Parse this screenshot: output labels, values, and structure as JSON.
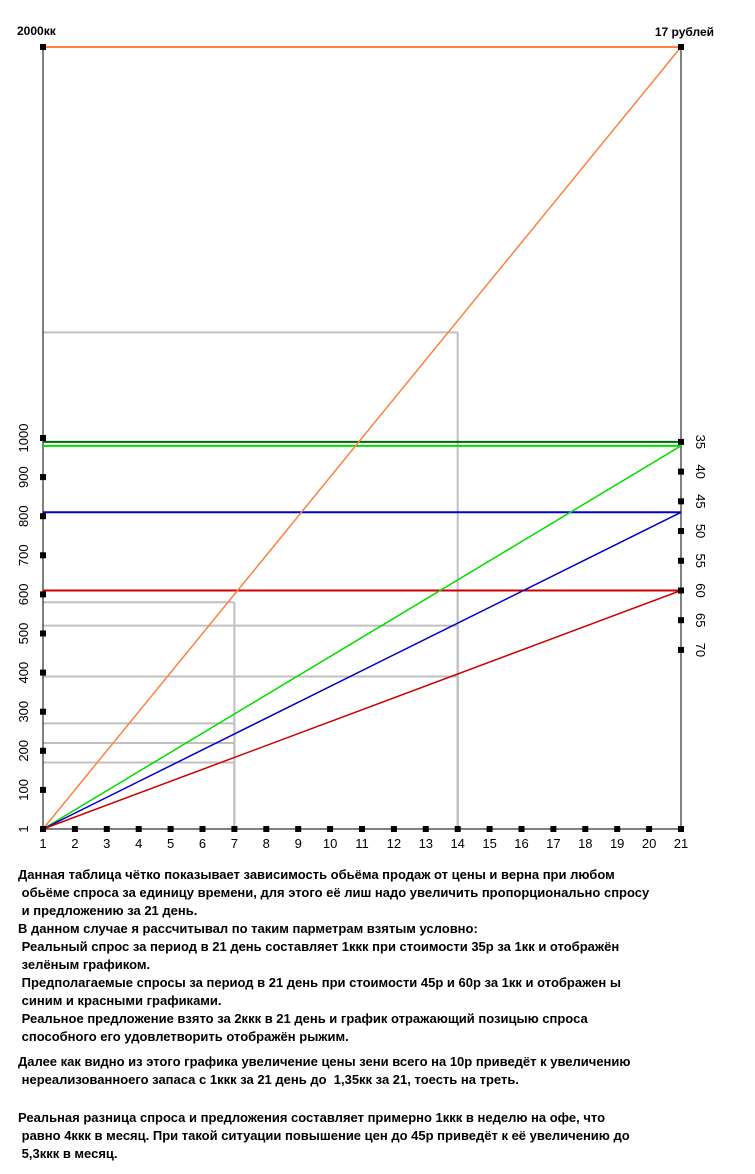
{
  "chart_data": {
    "type": "line",
    "grid": false,
    "legend": "none",
    "corner_left_label": "2000кк",
    "corner_right_label": "17 рублей",
    "x_ticks": [
      "1",
      "2",
      "3",
      "4",
      "5",
      "6",
      "7",
      "8",
      "9",
      "10",
      "11",
      "12",
      "13",
      "14",
      "15",
      "16",
      "17",
      "18",
      "19",
      "20",
      "21"
    ],
    "y_ticks": [
      "1",
      "100",
      "200",
      "300",
      "400",
      "500",
      "600",
      "700",
      "800",
      "900",
      "1000"
    ],
    "right_ticks": [
      "35",
      "40",
      "45",
      "50",
      "55",
      "60",
      "65",
      "70"
    ],
    "xlim": [
      1,
      21
    ],
    "ylim": [
      0,
      2000
    ],
    "series": [
      {
        "color": "#ff8040",
        "x": [
          1,
          21
        ],
        "y": [
          0,
          2000
        ]
      },
      {
        "color": "#00dd00",
        "x": [
          1,
          21
        ],
        "y": [
          0,
          980
        ]
      },
      {
        "color": "#0000cc",
        "x": [
          1,
          21
        ],
        "y": [
          0,
          810
        ]
      },
      {
        "color": "#cc0000",
        "x": [
          1,
          21
        ],
        "y": [
          0,
          610
        ]
      }
    ],
    "horizontal_lines": [
      {
        "color": "#ff8040",
        "y": 2000
      },
      {
        "color": "#006600",
        "y": 990
      },
      {
        "color": "#00dd00",
        "y": 980
      },
      {
        "color": "#0000cc",
        "y": 810
      },
      {
        "color": "#cc0000",
        "y": 610
      }
    ],
    "guide_lines": [
      {
        "color": "#c0c0c0",
        "x": 7,
        "y": 580
      },
      {
        "color": "#c0c0c0",
        "x": 14,
        "y": 1270
      },
      {
        "color": "#c0c0c0",
        "x": 14,
        "y": 610
      },
      {
        "color": "#c0c0c0",
        "x": 14,
        "y": 520
      },
      {
        "color": "#c0c0c0",
        "x": 14,
        "y": 390
      },
      {
        "color": "#c0c0c0",
        "x": 7,
        "y": 270
      },
      {
        "color": "#c0c0c0",
        "x": 7,
        "y": 220
      },
      {
        "color": "#c0c0c0",
        "x": 7,
        "y": 170
      }
    ]
  },
  "notes": {
    "p1": "Данная таблица чётко показывает зависимость обьёма продаж от цены и верна при любом\n обьёме спроса за единицу времени, для этого её лиш надо увеличить пропорционально спросу\n и предложению за 21 день.",
    "p2": "В данном случае я рассчитывал по таким парметрам взятым условно:",
    "p3": " Реальный спрос за период в 21 день составляет 1ккк при стоимости 35р за 1кк и отображён\n зелёным графиком.",
    "p4": " Предполагаемые спросы за период в 21 день при стоимости 45р и 60р за 1кк и отображен ы\n синим и красными графиками.",
    "p5": " Реальное предложение взято за 2ккк в 21 день и график отражающий позицыю спроса\n способного его удовлетворить отображён рыжим.",
    "p6": "Далее как видно из этого графика увеличение цены зени всего на 10р приведёт к увеличению\n нереализованноего запаса с 1ккк за 21 день до  1,35кк за 21, тоесть на треть.",
    "p7": "Реальная разница спроса и предложения составляет примерно 1ккк в неделю на офе, что\n равно 4ккк в месяц. При такой ситуации повышение цен до 45р приведёт к её увеличению до\n 5,3ккк в месяц."
  }
}
